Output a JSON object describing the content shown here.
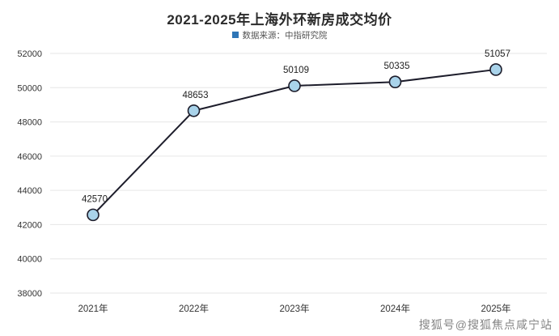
{
  "header": {
    "title": "2021-2025年上海外环新房成交均价",
    "subtitle": "数据来源：中指研究院"
  },
  "watermark": "搜狐号@搜狐焦点咸宁站",
  "chart_data": {
    "type": "line",
    "title": "2021-2025年上海外环新房成交均价",
    "subtitle": "数据来源：中指研究院",
    "categories": [
      "2021年",
      "2022年",
      "2023年",
      "2024年",
      "2025年"
    ],
    "values": [
      42570,
      48653,
      50109,
      50335,
      51057
    ],
    "data_labels": [
      "42570",
      "48653",
      "50109",
      "50335",
      "51057"
    ],
    "xlabel": "",
    "ylabel": "",
    "ylim": [
      38000,
      52000
    ],
    "ytick_step": 2000,
    "ytick_labels": [
      "38000",
      "40000",
      "42000",
      "44000",
      "46000",
      "48000",
      "50000",
      "52000"
    ],
    "grid": true,
    "legend": "none",
    "colors": {
      "line": "#1d1d2b",
      "marker_fill": "#a9d3ea",
      "marker_stroke": "#1d1d2b",
      "grid": "#e6e6e6",
      "axis_text": "#333333",
      "data_label": "#222222",
      "accent_blue": "#2e75b6"
    }
  }
}
